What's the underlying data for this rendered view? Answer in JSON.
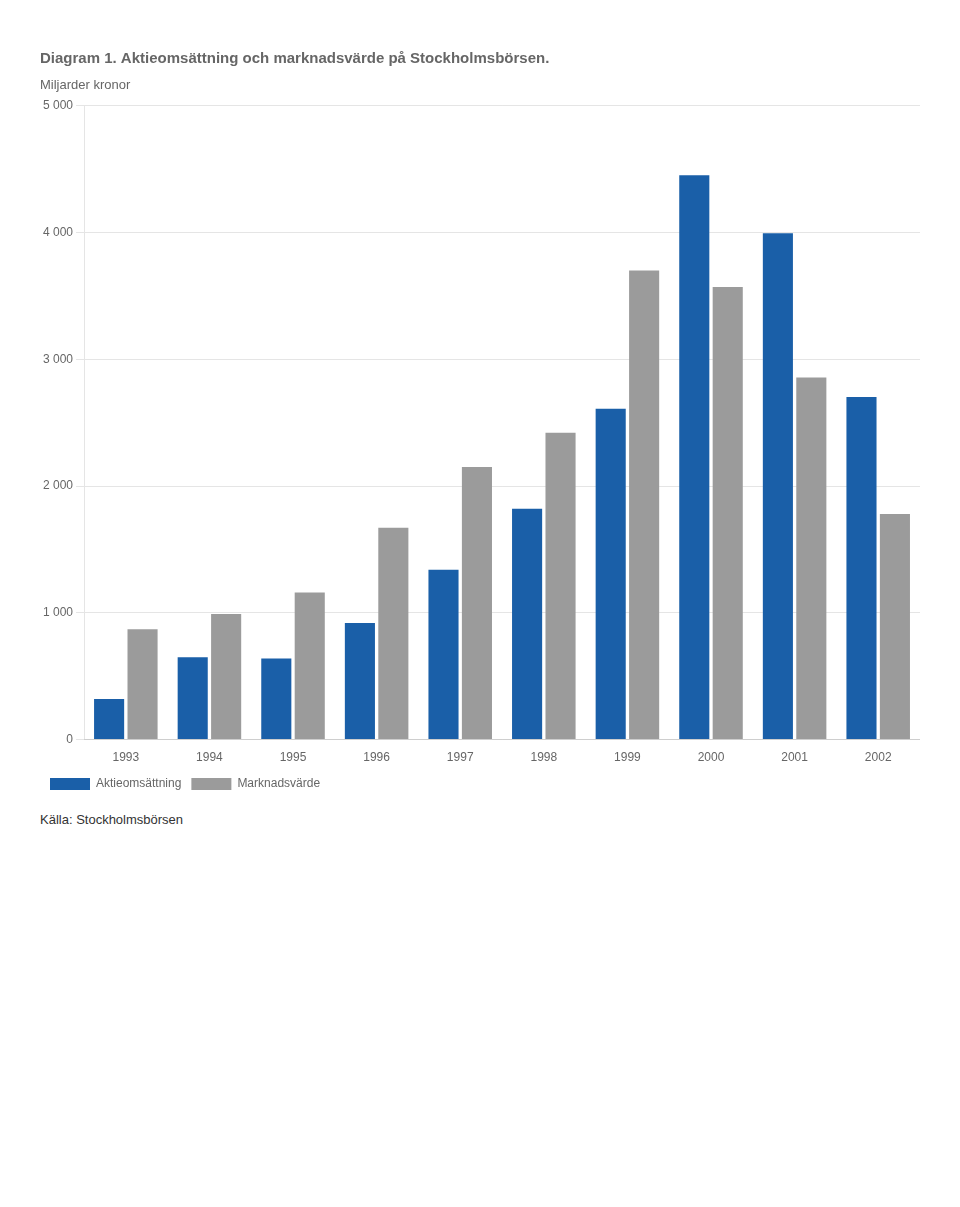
{
  "chart_data": {
    "type": "bar",
    "title": "Diagram 1. Aktieomsättning och marknadsvärde på Stockholmsbörsen.",
    "subtitle": "Miljarder kronor",
    "categories": [
      "1993",
      "1994",
      "1995",
      "1996",
      "1997",
      "1998",
      "1999",
      "2000",
      "2001",
      "2002"
    ],
    "series": [
      {
        "name": "Aktieomsättning",
        "color": "#1a5fa8",
        "values": [
          320,
          650,
          640,
          920,
          1340,
          1820,
          2610,
          4450,
          3994,
          2702
        ]
      },
      {
        "name": "Marknadsvärde",
        "color": "#9b9b9b",
        "values": [
          870,
          990,
          1160,
          1670,
          2150,
          2420,
          3700,
          3570,
          2856,
          1780
        ]
      }
    ],
    "ylim": [
      0,
      5000
    ],
    "yticks": [
      0,
      {
        "value": 1000,
        "label": "1 000"
      },
      {
        "value": 2000,
        "label": "2 000"
      },
      {
        "value": 3000,
        "label": "3 000"
      },
      {
        "value": 4000,
        "label": "4 000"
      },
      {
        "value": 5000,
        "label": "5 000"
      }
    ],
    "grid": "y",
    "legend": "bottom",
    "annotations": [
      "Källa: Stockholmsbörsen"
    ]
  }
}
